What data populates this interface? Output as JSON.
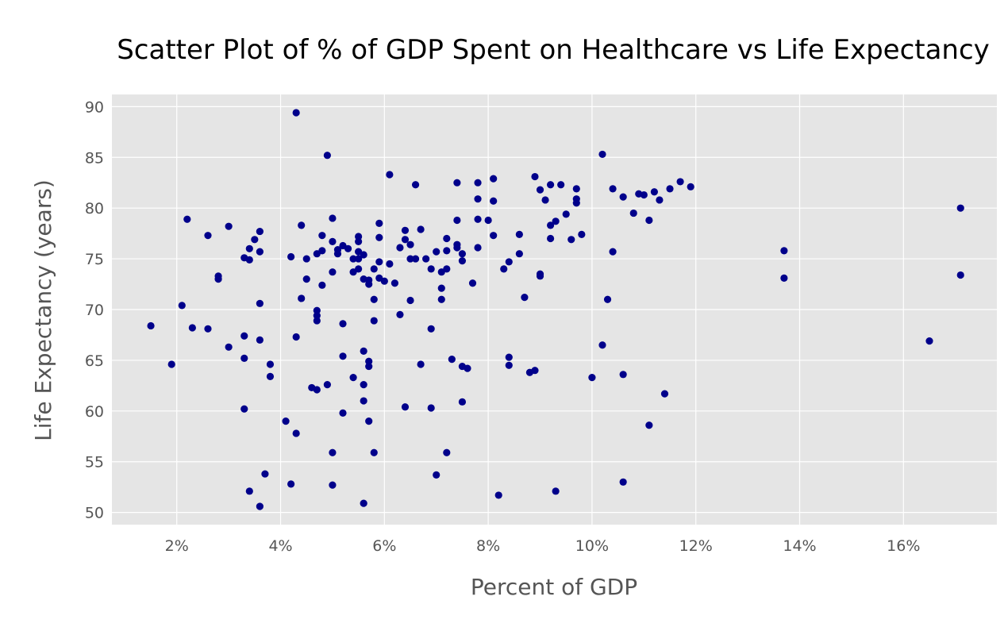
{
  "chart_data": {
    "type": "scatter",
    "title": "Scatter Plot of % of GDP Spent on Healthcare vs Life Expectancy",
    "xlabel": "Percent of GDP",
    "ylabel": "Life Expectancy (years)",
    "xlim": [
      0.75,
      17.8
    ],
    "ylim": [
      48.8,
      91.2
    ],
    "x_ticks": [
      2,
      4,
      6,
      8,
      10,
      12,
      14,
      16
    ],
    "x_tick_labels": [
      "2%",
      "4%",
      "6%",
      "8%",
      "10%",
      "12%",
      "14%",
      "16%"
    ],
    "y_ticks": [
      50,
      55,
      60,
      65,
      70,
      75,
      80,
      85,
      90
    ],
    "y_tick_labels": [
      "50",
      "55",
      "60",
      "65",
      "70",
      "75",
      "80",
      "85",
      "90"
    ],
    "grid": true,
    "background_color": "#e5e5e5",
    "point_color": "#00008b",
    "points": [
      [
        1.5,
        68.4
      ],
      [
        1.9,
        64.6
      ],
      [
        2.1,
        70.4
      ],
      [
        2.2,
        78.9
      ],
      [
        2.3,
        68.2
      ],
      [
        2.6,
        77.3
      ],
      [
        2.6,
        68.1
      ],
      [
        2.8,
        73.3
      ],
      [
        2.8,
        73.0
      ],
      [
        3.0,
        78.2
      ],
      [
        3.0,
        66.3
      ],
      [
        3.3,
        75.1
      ],
      [
        3.3,
        67.4
      ],
      [
        3.3,
        65.2
      ],
      [
        3.3,
        60.2
      ],
      [
        3.4,
        76.0
      ],
      [
        3.4,
        74.9
      ],
      [
        3.4,
        52.1
      ],
      [
        3.5,
        76.9
      ],
      [
        3.6,
        77.7
      ],
      [
        3.6,
        75.7
      ],
      [
        3.6,
        70.6
      ],
      [
        3.6,
        67.0
      ],
      [
        3.6,
        50.6
      ],
      [
        3.7,
        53.8
      ],
      [
        3.8,
        64.6
      ],
      [
        3.8,
        63.4
      ],
      [
        4.1,
        59.0
      ],
      [
        4.2,
        75.2
      ],
      [
        4.2,
        52.8
      ],
      [
        4.3,
        89.4
      ],
      [
        4.3,
        67.3
      ],
      [
        4.3,
        57.8
      ],
      [
        4.4,
        78.3
      ],
      [
        4.4,
        71.1
      ],
      [
        4.5,
        75.0
      ],
      [
        4.5,
        73.0
      ],
      [
        4.6,
        62.3
      ],
      [
        4.7,
        75.5
      ],
      [
        4.7,
        69.9
      ],
      [
        4.7,
        69.4
      ],
      [
        4.7,
        68.9
      ],
      [
        4.7,
        62.1
      ],
      [
        4.8,
        77.3
      ],
      [
        4.8,
        75.8
      ],
      [
        4.8,
        72.4
      ],
      [
        4.9,
        85.2
      ],
      [
        4.9,
        62.6
      ],
      [
        5.0,
        79.0
      ],
      [
        5.0,
        76.7
      ],
      [
        5.0,
        73.7
      ],
      [
        5.0,
        55.9
      ],
      [
        5.0,
        52.7
      ],
      [
        5.1,
        75.9
      ],
      [
        5.1,
        75.5
      ],
      [
        5.2,
        76.3
      ],
      [
        5.2,
        68.6
      ],
      [
        5.2,
        65.4
      ],
      [
        5.2,
        59.8
      ],
      [
        5.3,
        76.0
      ],
      [
        5.4,
        75.0
      ],
      [
        5.4,
        73.7
      ],
      [
        5.4,
        63.3
      ],
      [
        5.5,
        77.2
      ],
      [
        5.5,
        76.7
      ],
      [
        5.5,
        75.7
      ],
      [
        5.5,
        75.0
      ],
      [
        5.5,
        74.0
      ],
      [
        5.6,
        75.4
      ],
      [
        5.6,
        73.0
      ],
      [
        5.6,
        65.9
      ],
      [
        5.6,
        62.6
      ],
      [
        5.6,
        61.0
      ],
      [
        5.6,
        50.9
      ],
      [
        5.7,
        72.9
      ],
      [
        5.7,
        72.5
      ],
      [
        5.7,
        64.9
      ],
      [
        5.7,
        64.4
      ],
      [
        5.7,
        59.0
      ],
      [
        5.8,
        74.0
      ],
      [
        5.8,
        71.0
      ],
      [
        5.8,
        68.9
      ],
      [
        5.8,
        55.9
      ],
      [
        5.9,
        78.5
      ],
      [
        5.9,
        77.1
      ],
      [
        5.9,
        74.7
      ],
      [
        5.9,
        73.1
      ],
      [
        6.0,
        72.8
      ],
      [
        6.1,
        83.3
      ],
      [
        6.1,
        74.5
      ],
      [
        6.2,
        72.6
      ],
      [
        6.3,
        76.1
      ],
      [
        6.3,
        69.5
      ],
      [
        6.4,
        77.8
      ],
      [
        6.4,
        76.9
      ],
      [
        6.4,
        60.4
      ],
      [
        6.5,
        76.4
      ],
      [
        6.5,
        75.0
      ],
      [
        6.5,
        70.9
      ],
      [
        6.6,
        82.3
      ],
      [
        6.6,
        75.0
      ],
      [
        6.7,
        77.9
      ],
      [
        6.7,
        64.6
      ],
      [
        6.8,
        75.0
      ],
      [
        6.9,
        74.0
      ],
      [
        6.9,
        68.1
      ],
      [
        6.9,
        60.3
      ],
      [
        7.0,
        75.7
      ],
      [
        7.0,
        53.7
      ],
      [
        7.1,
        73.7
      ],
      [
        7.1,
        72.1
      ],
      [
        7.1,
        71.0
      ],
      [
        7.2,
        77.0
      ],
      [
        7.2,
        75.8
      ],
      [
        7.2,
        74.0
      ],
      [
        7.2,
        55.9
      ],
      [
        7.3,
        65.1
      ],
      [
        7.4,
        82.5
      ],
      [
        7.4,
        78.8
      ],
      [
        7.4,
        76.4
      ],
      [
        7.4,
        76.1
      ],
      [
        7.5,
        75.5
      ],
      [
        7.5,
        74.8
      ],
      [
        7.5,
        64.4
      ],
      [
        7.5,
        60.9
      ],
      [
        7.6,
        64.2
      ],
      [
        7.7,
        72.6
      ],
      [
        7.8,
        82.5
      ],
      [
        7.8,
        80.9
      ],
      [
        7.8,
        78.9
      ],
      [
        7.8,
        76.1
      ],
      [
        8.0,
        78.8
      ],
      [
        8.1,
        82.9
      ],
      [
        8.1,
        80.7
      ],
      [
        8.1,
        77.3
      ],
      [
        8.2,
        51.7
      ],
      [
        8.3,
        74.0
      ],
      [
        8.4,
        74.7
      ],
      [
        8.4,
        65.3
      ],
      [
        8.4,
        64.5
      ],
      [
        8.6,
        77.4
      ],
      [
        8.6,
        75.5
      ],
      [
        8.7,
        71.2
      ],
      [
        8.8,
        63.8
      ],
      [
        8.9,
        83.1
      ],
      [
        8.9,
        64.0
      ],
      [
        9.0,
        81.8
      ],
      [
        9.0,
        73.5
      ],
      [
        9.0,
        73.3
      ],
      [
        9.1,
        80.8
      ],
      [
        9.2,
        82.3
      ],
      [
        9.2,
        78.3
      ],
      [
        9.2,
        77.0
      ],
      [
        9.3,
        78.7
      ],
      [
        9.3,
        52.1
      ],
      [
        9.4,
        82.3
      ],
      [
        9.5,
        79.4
      ],
      [
        9.6,
        76.9
      ],
      [
        9.7,
        81.9
      ],
      [
        9.7,
        80.9
      ],
      [
        9.7,
        80.5
      ],
      [
        9.8,
        77.4
      ],
      [
        10.0,
        63.3
      ],
      [
        10.2,
        85.3
      ],
      [
        10.2,
        66.5
      ],
      [
        10.3,
        71.0
      ],
      [
        10.4,
        81.9
      ],
      [
        10.4,
        75.7
      ],
      [
        10.6,
        81.1
      ],
      [
        10.6,
        63.6
      ],
      [
        10.6,
        53.0
      ],
      [
        10.8,
        79.5
      ],
      [
        10.9,
        81.4
      ],
      [
        11.0,
        81.3
      ],
      [
        11.1,
        78.8
      ],
      [
        11.1,
        58.6
      ],
      [
        11.2,
        81.6
      ],
      [
        11.3,
        80.8
      ],
      [
        11.4,
        61.7
      ],
      [
        11.5,
        81.9
      ],
      [
        11.7,
        82.6
      ],
      [
        11.9,
        82.1
      ],
      [
        13.7,
        75.8
      ],
      [
        13.7,
        73.1
      ],
      [
        16.5,
        66.9
      ],
      [
        17.1,
        80.0
      ],
      [
        17.1,
        73.4
      ]
    ]
  }
}
